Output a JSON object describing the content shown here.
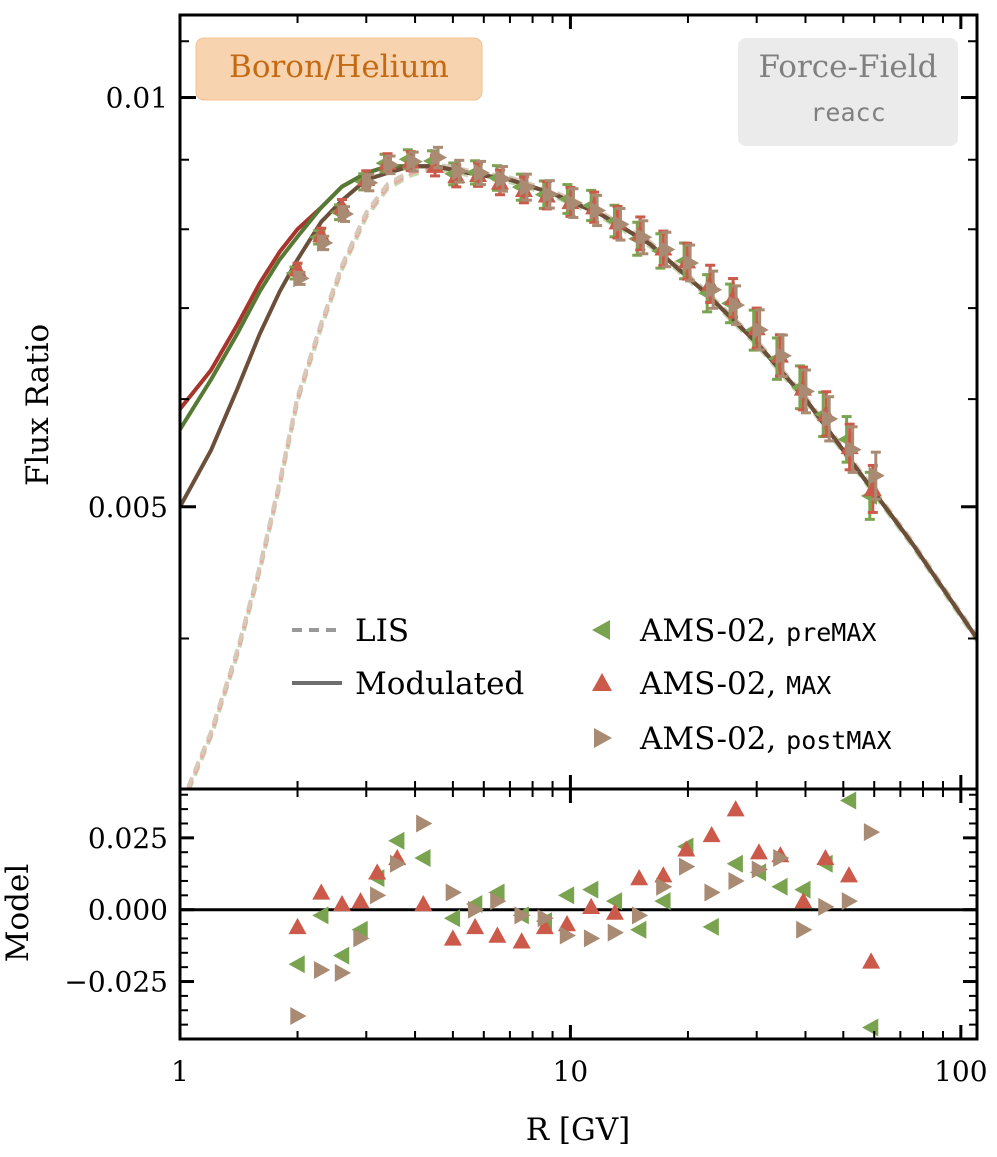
{
  "chart_data": {
    "type": "scatter",
    "title_badge": "Boron/Helium",
    "model_badge": {
      "line1": "Force-Field",
      "line2": "reacc"
    },
    "colors": {
      "preMAX": "#7aa350",
      "MAX": "#cc5a4a",
      "postMAX": "#a88b72",
      "preMAX_line": "#567a36",
      "MAX_line": "#a8352b",
      "postMAX_line": "#6b4f3a",
      "lis_pre": "#c8d6b0",
      "lis_max": "#e8a8a0",
      "lis_post": "#d8c8b8",
      "badge_orange_bg": "#f8d3b0",
      "badge_orange_text": "#c46a12",
      "badge_gray_bg": "#ebebeb",
      "badge_gray_text": "#808080"
    },
    "top_panel": {
      "ylabel": "Flux Ratio",
      "xscale": "log",
      "yscale": "log",
      "xlim": [
        1,
        110
      ],
      "ylim": [
        0.0031,
        0.0115
      ],
      "ytick_labels": [
        {
          "value": 0.01,
          "label": "0.01"
        },
        {
          "value": 0.005,
          "label": "0.005"
        }
      ],
      "ytick_minor": [
        0.004,
        0.006,
        0.007,
        0.008,
        0.009,
        0.011
      ],
      "legend": {
        "lines": [
          {
            "label": "LIS",
            "style": "dashed"
          },
          {
            "label": "Modulated",
            "style": "solid"
          }
        ],
        "markers": [
          {
            "label": "AMS-02, ",
            "mono": "preMAX",
            "marker": "triangle-left",
            "series": "preMAX"
          },
          {
            "label": "AMS-02, ",
            "mono": "MAX",
            "marker": "triangle-up",
            "series": "MAX"
          },
          {
            "label": "AMS-02, ",
            "mono": "postMAX",
            "marker": "triangle-right",
            "series": "postMAX"
          }
        ]
      },
      "lis_curve": {
        "R": [
          1.05,
          1.2,
          1.4,
          1.6,
          1.8,
          2.0,
          2.3,
          2.6,
          3.0,
          3.4,
          3.9,
          4.5,
          5.5,
          7,
          9,
          12,
          16,
          22,
          30,
          40,
          55,
          75,
          110
        ],
        "ratio": [
          0.0031,
          0.0034,
          0.0039,
          0.0045,
          0.0052,
          0.006,
          0.0068,
          0.0075,
          0.0082,
          0.0086,
          0.0088,
          0.0089,
          0.0088,
          0.0087,
          0.0085,
          0.0082,
          0.0078,
          0.0072,
          0.0066,
          0.006,
          0.0053,
          0.0047,
          0.004
        ]
      },
      "modulated_curves": [
        {
          "series": "MAX",
          "R": [
            1.0,
            1.2,
            1.4,
            1.6,
            1.8,
            2.0,
            2.3,
            2.6,
            3.0,
            3.4,
            3.9,
            4.5,
            5.5,
            7,
            9,
            12,
            16,
            22,
            30,
            40,
            55,
            75,
            110
          ],
          "ratio": [
            0.0059,
            0.0063,
            0.0068,
            0.0073,
            0.0077,
            0.008,
            0.0083,
            0.0086,
            0.0088,
            0.0089,
            0.0089,
            0.0089,
            0.0088,
            0.0087,
            0.0085,
            0.0082,
            0.0078,
            0.0072,
            0.0066,
            0.006,
            0.0053,
            0.0047,
            0.004
          ]
        },
        {
          "series": "preMAX",
          "R": [
            1.0,
            1.2,
            1.4,
            1.6,
            1.8,
            2.0,
            2.3,
            2.6,
            3.0,
            3.4,
            3.9,
            4.5,
            5.5,
            7,
            9,
            12,
            16,
            22,
            30,
            40,
            55,
            75,
            110
          ],
          "ratio": [
            0.0057,
            0.0062,
            0.0067,
            0.0072,
            0.0076,
            0.0079,
            0.0083,
            0.0086,
            0.0088,
            0.0089,
            0.0089,
            0.0089,
            0.0088,
            0.0087,
            0.0085,
            0.0082,
            0.0078,
            0.0072,
            0.0066,
            0.006,
            0.0053,
            0.0047,
            0.004
          ]
        },
        {
          "series": "postMAX",
          "R": [
            1.0,
            1.2,
            1.4,
            1.6,
            1.8,
            2.0,
            2.3,
            2.6,
            3.0,
            3.4,
            3.9,
            4.5,
            5.5,
            7,
            9,
            12,
            16,
            22,
            30,
            40,
            55,
            75,
            110
          ],
          "ratio": [
            0.005,
            0.0055,
            0.0061,
            0.0067,
            0.0072,
            0.0076,
            0.0081,
            0.0084,
            0.0087,
            0.0088,
            0.0089,
            0.0089,
            0.0088,
            0.0087,
            0.0085,
            0.0082,
            0.0078,
            0.0072,
            0.0066,
            0.006,
            0.0053,
            0.0047,
            0.004
          ]
        }
      ],
      "data_R": [
        2.0,
        2.3,
        2.6,
        3.0,
        3.4,
        3.9,
        4.5,
        5.1,
        5.8,
        6.6,
        7.6,
        8.7,
        10.0,
        11.5,
        13.2,
        15.1,
        17.3,
        19.9,
        22.8,
        26.1,
        30.0,
        34.4,
        39.4,
        45.2,
        51.9,
        59.5
      ],
      "data_ratio_base": [
        0.0075,
        0.0079,
        0.0083,
        0.0087,
        0.0089,
        0.0089,
        0.0089,
        0.0088,
        0.0088,
        0.0087,
        0.0086,
        0.0085,
        0.0084,
        0.0083,
        0.0081,
        0.0079,
        0.0077,
        0.0075,
        0.0072,
        0.007,
        0.0067,
        0.0064,
        0.0061,
        0.0058,
        0.0055,
        0.0052
      ]
    },
    "bottom_panel": {
      "ylabel": "Model",
      "xlabel": "R [GV]",
      "ylim": [
        -0.045,
        0.042
      ],
      "ytick_labels": [
        {
          "value": 0.025,
          "label": "0.025"
        },
        {
          "value": 0.0,
          "label": "0.000"
        },
        {
          "value": -0.025,
          "label": "−0.025"
        }
      ],
      "xtick_labels": [
        {
          "value": 1,
          "label": "1"
        },
        {
          "value": 10,
          "label": "10"
        },
        {
          "value": 100,
          "label": "100"
        }
      ],
      "residuals": {
        "preMAX": [
          [
            2.0,
            -0.019
          ],
          [
            2.3,
            -0.002
          ],
          [
            2.6,
            -0.016
          ],
          [
            2.9,
            -0.007
          ],
          [
            3.2,
            0.011
          ],
          [
            3.6,
            0.024
          ],
          [
            4.2,
            0.018
          ],
          [
            5.0,
            -0.003
          ],
          [
            5.7,
            0.002
          ],
          [
            6.5,
            0.006
          ],
          [
            7.5,
            -0.002
          ],
          [
            8.6,
            -0.004
          ],
          [
            9.8,
            0.005
          ],
          [
            11.3,
            0.007
          ],
          [
            13.0,
            0.003
          ],
          [
            15.0,
            -0.007
          ],
          [
            17.3,
            0.003
          ],
          [
            19.8,
            0.022
          ],
          [
            23.0,
            -0.006
          ],
          [
            26.5,
            0.016
          ],
          [
            30.4,
            0.013
          ],
          [
            34.5,
            0.008
          ],
          [
            39.5,
            0.007
          ],
          [
            45.0,
            0.016
          ],
          [
            51.7,
            0.038
          ],
          [
            58.9,
            -0.041
          ]
        ],
        "MAX": [
          [
            2.0,
            -0.006
          ],
          [
            2.3,
            0.006
          ],
          [
            2.6,
            0.002
          ],
          [
            2.9,
            0.003
          ],
          [
            3.2,
            0.013
          ],
          [
            3.6,
            0.018
          ],
          [
            4.2,
            0.002
          ],
          [
            5.0,
            -0.01
          ],
          [
            5.7,
            -0.006
          ],
          [
            6.5,
            -0.009
          ],
          [
            7.5,
            -0.011
          ],
          [
            8.6,
            -0.006
          ],
          [
            9.8,
            -0.005
          ],
          [
            11.3,
            0.001
          ],
          [
            13.0,
            -0.001
          ],
          [
            15.0,
            0.011
          ],
          [
            17.3,
            0.012
          ],
          [
            19.8,
            0.021
          ],
          [
            23.0,
            0.026
          ],
          [
            26.5,
            0.035
          ],
          [
            30.4,
            0.02
          ],
          [
            34.5,
            0.019
          ],
          [
            39.5,
            0.003
          ],
          [
            45.0,
            0.018
          ],
          [
            51.7,
            0.012
          ],
          [
            58.9,
            -0.018
          ]
        ],
        "postMAX": [
          [
            2.0,
            -0.037
          ],
          [
            2.3,
            -0.021
          ],
          [
            2.6,
            -0.022
          ],
          [
            2.9,
            -0.01
          ],
          [
            3.2,
            0.005
          ],
          [
            3.6,
            0.016
          ],
          [
            4.2,
            0.03
          ],
          [
            5.0,
            0.006
          ],
          [
            5.7,
            0.0
          ],
          [
            6.5,
            0.003
          ],
          [
            7.5,
            -0.002
          ],
          [
            8.6,
            -0.003
          ],
          [
            9.8,
            -0.009
          ],
          [
            11.3,
            -0.01
          ],
          [
            13.0,
            -0.008
          ],
          [
            15.0,
            -0.002
          ],
          [
            17.3,
            0.008
          ],
          [
            19.8,
            0.015
          ],
          [
            23.0,
            0.006
          ],
          [
            26.5,
            0.01
          ],
          [
            30.4,
            0.014
          ],
          [
            34.5,
            0.018
          ],
          [
            39.5,
            -0.007
          ],
          [
            45.0,
            0.001
          ],
          [
            51.7,
            0.003
          ],
          [
            58.9,
            0.027
          ]
        ]
      }
    }
  }
}
